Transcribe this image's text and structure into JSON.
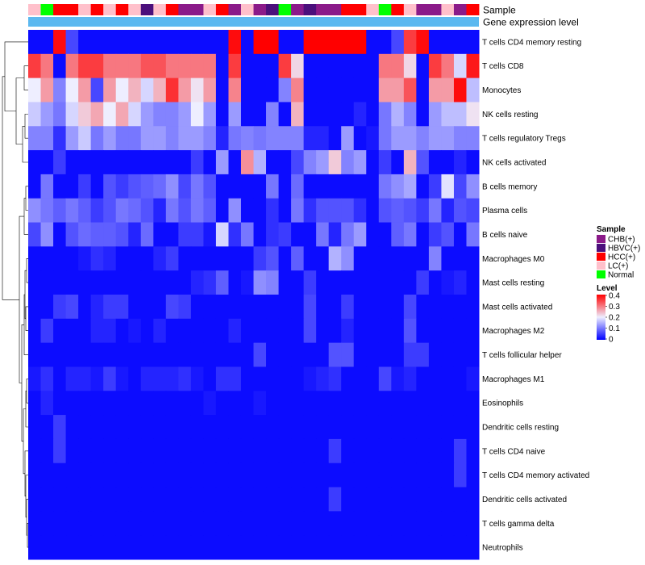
{
  "chart_data": {
    "type": "heatmap",
    "title": "",
    "annotation_labels": [
      "Sample",
      "Gene expression level"
    ],
    "sample_groups": [
      "CHB(+)",
      "HBVC(+)",
      "HCC(+)",
      "LC(+)",
      "Normal"
    ],
    "group_colors": {
      "CHB(+)": "#8B1A89",
      "HBVC(+)": "#4B0F7C",
      "HCC(+)": "#FF0000",
      "LC(+)": "#FFC0CB",
      "Normal": "#00FF00"
    },
    "sample_annotation": [
      "LC(+)",
      "Normal",
      "HCC(+)",
      "HCC(+)",
      "LC(+)",
      "HCC(+)",
      "LC(+)",
      "HCC(+)",
      "LC(+)",
      "HBVC(+)",
      "LC(+)",
      "HCC(+)",
      "CHB(+)",
      "CHB(+)",
      "LC(+)",
      "HCC(+)",
      "CHB(+)",
      "LC(+)",
      "CHB(+)",
      "HBVC(+)",
      "Normal",
      "CHB(+)",
      "HBVC(+)",
      "CHB(+)",
      "CHB(+)",
      "HCC(+)",
      "HCC(+)",
      "LC(+)",
      "Normal",
      "HCC(+)",
      "LC(+)",
      "CHB(+)",
      "CHB(+)",
      "LC(+)",
      "CHB(+)",
      "HCC(+)"
    ],
    "gene_expression_level_color": "#5BB8F0",
    "rows": [
      "T cells CD4 memory resting",
      "T cells CD8",
      "Monocytes",
      "NK cells resting",
      "T cells regulatory  Tregs",
      "NK cells activated",
      "B cells memory",
      "Plasma cells",
      "B cells naive",
      "Macrophages M0",
      "Mast cells resting",
      "Mast cells activated",
      "Macrophages M2",
      "T cells follicular helper",
      "Macrophages M1",
      "Eosinophils",
      "Dendritic cells resting",
      "T cells CD4 naive",
      "T cells CD4 memory activated",
      "Dendritic cells activated",
      "T cells gamma delta",
      "Neutrophils"
    ],
    "values": [
      [
        0.01,
        0.01,
        0.39,
        0.06,
        0.01,
        0.01,
        0.01,
        0.01,
        0.01,
        0.01,
        0.01,
        0.01,
        0.01,
        0.01,
        0.01,
        0.01,
        0.39,
        0.01,
        0.4,
        0.4,
        0.01,
        0.01,
        0.4,
        0.4,
        0.4,
        0.4,
        0.4,
        0.01,
        0.01,
        0.06,
        0.35,
        0.39,
        0.01,
        0.01,
        0.01,
        0.01
      ],
      [
        0.35,
        0.3,
        0.01,
        0.3,
        0.35,
        0.35,
        0.3,
        0.3,
        0.3,
        0.33,
        0.33,
        0.3,
        0.3,
        0.3,
        0.3,
        0.01,
        0.35,
        0.01,
        0.01,
        0.01,
        0.35,
        0.22,
        0.01,
        0.01,
        0.01,
        0.01,
        0.01,
        0.01,
        0.3,
        0.3,
        0.22,
        0.01,
        0.35,
        0.3,
        0.18,
        0.38
      ],
      [
        0.2,
        0.27,
        0.11,
        0.2,
        0.27,
        0.06,
        0.27,
        0.2,
        0.25,
        0.18,
        0.25,
        0.36,
        0.27,
        0.21,
        0.27,
        0.01,
        0.29,
        0.01,
        0.01,
        0.01,
        0.11,
        0.29,
        0.01,
        0.01,
        0.01,
        0.01,
        0.01,
        0.01,
        0.27,
        0.27,
        0.33,
        0.01,
        0.27,
        0.27,
        0.39,
        0.16
      ],
      [
        0.17,
        0.13,
        0.1,
        0.18,
        0.23,
        0.26,
        0.2,
        0.26,
        0.18,
        0.13,
        0.11,
        0.11,
        0.13,
        0.2,
        0.13,
        0.01,
        0.13,
        0.01,
        0.01,
        0.11,
        0.01,
        0.25,
        0.01,
        0.01,
        0.01,
        0.01,
        0.03,
        0.01,
        0.1,
        0.15,
        0.11,
        0.01,
        0.13,
        0.16,
        0.16,
        0.21
      ],
      [
        0.11,
        0.11,
        0.04,
        0.13,
        0.17,
        0.1,
        0.13,
        0.1,
        0.1,
        0.13,
        0.13,
        0.11,
        0.13,
        0.13,
        0.11,
        0.03,
        0.1,
        0.11,
        0.1,
        0.11,
        0.11,
        0.11,
        0.03,
        0.03,
        0.01,
        0.13,
        0.01,
        0.02,
        0.1,
        0.13,
        0.13,
        0.11,
        0.13,
        0.13,
        0.11,
        0.11
      ],
      [
        0.01,
        0.01,
        0.05,
        0.01,
        0.01,
        0.01,
        0.01,
        0.01,
        0.01,
        0.01,
        0.01,
        0.01,
        0.01,
        0.05,
        0.01,
        0.13,
        0.01,
        0.28,
        0.15,
        0.01,
        0.01,
        0.06,
        0.11,
        0.13,
        0.23,
        0.11,
        0.13,
        0.01,
        0.05,
        0.01,
        0.25,
        0.07,
        0.01,
        0.01,
        0.03,
        0.01
      ],
      [
        0.01,
        0.1,
        0.01,
        0.01,
        0.05,
        0.01,
        0.07,
        0.05,
        0.07,
        0.08,
        0.09,
        0.12,
        0.06,
        0.1,
        0.07,
        0.01,
        0.01,
        0.01,
        0.01,
        0.1,
        0.01,
        0.09,
        0.01,
        0.01,
        0.01,
        0.01,
        0.01,
        0.01,
        0.1,
        0.12,
        0.14,
        0.01,
        0.05,
        0.19,
        0.06,
        0.12
      ],
      [
        0.12,
        0.1,
        0.08,
        0.1,
        0.08,
        0.05,
        0.07,
        0.1,
        0.09,
        0.07,
        0.03,
        0.1,
        0.07,
        0.1,
        0.08,
        0.01,
        0.12,
        0.01,
        0.01,
        0.04,
        0.01,
        0.1,
        0.04,
        0.07,
        0.07,
        0.07,
        0.04,
        0.01,
        0.07,
        0.08,
        0.07,
        0.05,
        0.1,
        0.03,
        0.07,
        0.06
      ],
      [
        0.06,
        0.12,
        0.01,
        0.07,
        0.09,
        0.08,
        0.08,
        0.07,
        0.03,
        0.09,
        0.01,
        0.01,
        0.05,
        0.05,
        0.02,
        0.18,
        0.04,
        0.1,
        0.01,
        0.04,
        0.05,
        0.01,
        0.01,
        0.1,
        0.03,
        0.1,
        0.13,
        0.01,
        0.01,
        0.08,
        0.1,
        0.01,
        0.05,
        0.07,
        0.01,
        0.1
      ],
      [
        0.01,
        0.01,
        0.01,
        0.01,
        0.02,
        0.04,
        0.03,
        0.01,
        0.01,
        0.01,
        0.03,
        0.05,
        0.01,
        0.01,
        0.01,
        0.01,
        0.01,
        0.01,
        0.05,
        0.07,
        0.01,
        0.08,
        0.01,
        0.01,
        0.15,
        0.12,
        0.01,
        0.01,
        0.01,
        0.01,
        0.01,
        0.01,
        0.11,
        0.01,
        0.01,
        0.01
      ],
      [
        0.01,
        0.01,
        0.01,
        0.01,
        0.01,
        0.01,
        0.01,
        0.01,
        0.01,
        0.01,
        0.01,
        0.01,
        0.01,
        0.03,
        0.04,
        0.08,
        0.01,
        0.02,
        0.12,
        0.11,
        0.01,
        0.01,
        0.05,
        0.01,
        0.01,
        0.01,
        0.01,
        0.01,
        0.01,
        0.01,
        0.01,
        0.05,
        0.01,
        0.02,
        0.03,
        0.01
      ],
      [
        0.01,
        0.01,
        0.05,
        0.06,
        0.01,
        0.03,
        0.05,
        0.05,
        0.01,
        0.01,
        0.01,
        0.06,
        0.05,
        0.01,
        0.01,
        0.01,
        0.01,
        0.01,
        0.01,
        0.01,
        0.01,
        0.01,
        0.06,
        0.01,
        0.01,
        0.05,
        0.01,
        0.01,
        0.01,
        0.01,
        0.06,
        0.01,
        0.01,
        0.01,
        0.01,
        0.01
      ],
      [
        0.01,
        0.05,
        0.01,
        0.01,
        0.01,
        0.03,
        0.03,
        0.01,
        0.02,
        0.01,
        0.03,
        0.01,
        0.01,
        0.01,
        0.01,
        0.01,
        0.03,
        0.01,
        0.01,
        0.01,
        0.01,
        0.01,
        0.06,
        0.01,
        0.01,
        0.03,
        0.01,
        0.01,
        0.01,
        0.01,
        0.07,
        0.01,
        0.01,
        0.01,
        0.01,
        0.01
      ],
      [
        0.01,
        0.01,
        0.01,
        0.01,
        0.01,
        0.01,
        0.01,
        0.01,
        0.01,
        0.01,
        0.01,
        0.01,
        0.01,
        0.01,
        0.01,
        0.01,
        0.01,
        0.01,
        0.06,
        0.01,
        0.01,
        0.01,
        0.01,
        0.01,
        0.07,
        0.07,
        0.01,
        0.01,
        0.01,
        0.01,
        0.05,
        0.05,
        0.01,
        0.01,
        0.01,
        0.01
      ],
      [
        0.02,
        0.04,
        0.01,
        0.03,
        0.03,
        0.02,
        0.05,
        0.02,
        0.01,
        0.03,
        0.03,
        0.03,
        0.04,
        0.02,
        0.01,
        0.04,
        0.04,
        0.01,
        0.01,
        0.01,
        0.01,
        0.01,
        0.02,
        0.03,
        0.04,
        0.01,
        0.01,
        0.01,
        0.06,
        0.02,
        0.03,
        0.01,
        0.01,
        0.01,
        0.01,
        0.02
      ],
      [
        0.01,
        0.03,
        0.01,
        0.01,
        0.01,
        0.01,
        0.01,
        0.01,
        0.01,
        0.01,
        0.01,
        0.01,
        0.01,
        0.01,
        0.02,
        0.01,
        0.01,
        0.01,
        0.02,
        0.01,
        0.01,
        0.01,
        0.01,
        0.01,
        0.01,
        0.01,
        0.01,
        0.01,
        0.01,
        0.01,
        0.01,
        0.01,
        0.01,
        0.01,
        0.01,
        0.01
      ],
      [
        0.01,
        0.01,
        0.05,
        0.01,
        0.01,
        0.01,
        0.01,
        0.01,
        0.01,
        0.01,
        0.01,
        0.01,
        0.01,
        0.01,
        0.01,
        0.01,
        0.01,
        0.01,
        0.01,
        0.01,
        0.01,
        0.01,
        0.01,
        0.01,
        0.01,
        0.01,
        0.01,
        0.01,
        0.01,
        0.01,
        0.01,
        0.01,
        0.01,
        0.01,
        0.01,
        0.01
      ],
      [
        0.01,
        0.01,
        0.05,
        0.01,
        0.01,
        0.01,
        0.01,
        0.01,
        0.01,
        0.01,
        0.01,
        0.01,
        0.01,
        0.01,
        0.01,
        0.01,
        0.01,
        0.01,
        0.01,
        0.01,
        0.01,
        0.01,
        0.01,
        0.01,
        0.05,
        0.01,
        0.01,
        0.01,
        0.01,
        0.01,
        0.01,
        0.01,
        0.01,
        0.01,
        0.05,
        0.01
      ],
      [
        0.01,
        0.01,
        0.01,
        0.01,
        0.01,
        0.01,
        0.01,
        0.01,
        0.01,
        0.01,
        0.01,
        0.01,
        0.01,
        0.01,
        0.01,
        0.01,
        0.01,
        0.01,
        0.01,
        0.01,
        0.01,
        0.01,
        0.01,
        0.01,
        0.01,
        0.01,
        0.01,
        0.01,
        0.01,
        0.01,
        0.01,
        0.01,
        0.01,
        0.01,
        0.05,
        0.01
      ],
      [
        0.01,
        0.01,
        0.01,
        0.01,
        0.01,
        0.01,
        0.01,
        0.01,
        0.01,
        0.01,
        0.01,
        0.01,
        0.01,
        0.01,
        0.01,
        0.01,
        0.01,
        0.01,
        0.01,
        0.01,
        0.01,
        0.01,
        0.01,
        0.01,
        0.05,
        0.01,
        0.01,
        0.01,
        0.01,
        0.01,
        0.01,
        0.01,
        0.01,
        0.01,
        0.01,
        0.01
      ],
      [
        0.01,
        0.01,
        0.01,
        0.01,
        0.01,
        0.01,
        0.01,
        0.01,
        0.01,
        0.01,
        0.01,
        0.01,
        0.01,
        0.01,
        0.01,
        0.01,
        0.01,
        0.01,
        0.01,
        0.01,
        0.01,
        0.01,
        0.01,
        0.01,
        0.01,
        0.01,
        0.01,
        0.01,
        0.01,
        0.01,
        0.01,
        0.01,
        0.01,
        0.01,
        0.01,
        0.01
      ],
      [
        0.01,
        0.01,
        0.01,
        0.01,
        0.01,
        0.01,
        0.01,
        0.01,
        0.01,
        0.01,
        0.01,
        0.01,
        0.01,
        0.01,
        0.01,
        0.01,
        0.01,
        0.01,
        0.01,
        0.01,
        0.01,
        0.01,
        0.01,
        0.01,
        0.01,
        0.01,
        0.01,
        0.01,
        0.01,
        0.01,
        0.01,
        0.01,
        0.01,
        0.01,
        0.01,
        0.01
      ]
    ],
    "color_scale": {
      "min": 0,
      "mid": 0.2,
      "max": 0.4,
      "low_color": "#0000FF",
      "mid_color": "#EEEEFF",
      "high_color": "#FF0000"
    },
    "legend": {
      "sample_title": "Sample",
      "level_title": "Level",
      "level_ticks": [
        "0.4",
        "0.3",
        "0.2",
        "0.1",
        "0"
      ]
    }
  }
}
